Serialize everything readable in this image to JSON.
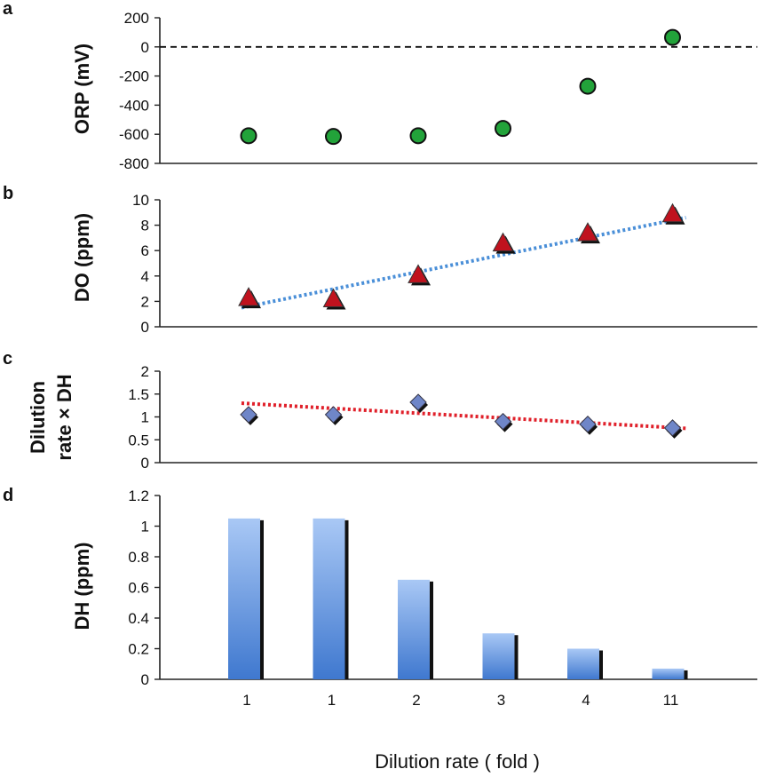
{
  "x_axis_title": "Dilution rate ( fold )",
  "x_categories": [
    "1",
    "1",
    "2",
    "3",
    "4",
    "11"
  ],
  "colors": {
    "orp_marker": "#22a33a",
    "do_marker": "#c0121e",
    "do_trend": "#4a8fd8",
    "ratio_marker": "#6f86c8",
    "ratio_trend": "#e0202a",
    "bar_light": "#a9c8f5",
    "bar_dark": "#3f78cf",
    "bar_shadow": "#111111"
  },
  "chart_data": [
    {
      "panel": "a",
      "type": "scatter",
      "ylabel": "ORP (mV)",
      "ylim": [
        -800,
        200
      ],
      "yticks": [
        "200",
        "0",
        "-200",
        "-400",
        "-600",
        "-800"
      ],
      "y_tick_values": [
        200,
        0,
        -200,
        -400,
        -600,
        -800
      ],
      "values": [
        -610,
        -615,
        -610,
        -560,
        -270,
        65
      ],
      "reference_line": 0,
      "marker": "circle"
    },
    {
      "panel": "b",
      "type": "scatter",
      "ylabel": "DO (ppm)",
      "ylim": [
        0,
        10
      ],
      "yticks": [
        "10",
        "8",
        "6",
        "4",
        "2",
        "0"
      ],
      "y_tick_values": [
        10,
        8,
        6,
        4,
        2,
        0
      ],
      "values": [
        2.3,
        2.2,
        4.1,
        6.6,
        7.4,
        8.9
      ],
      "trendline": [
        1.5,
        8.6
      ],
      "marker": "triangle"
    },
    {
      "panel": "c",
      "type": "scatter",
      "ylabel_lines": [
        "Dilution",
        "rate × DH"
      ],
      "ylim": [
        0,
        2
      ],
      "yticks": [
        "2",
        "1.5",
        "1",
        "0.5",
        "0"
      ],
      "y_tick_values": [
        2,
        1.5,
        1,
        0.5,
        0
      ],
      "values": [
        1.05,
        1.05,
        1.32,
        0.9,
        0.84,
        0.76
      ],
      "trendline": [
        1.3,
        0.75
      ],
      "marker": "diamond"
    },
    {
      "panel": "d",
      "type": "bar",
      "ylabel": "DH (ppm)",
      "ylim": [
        0,
        1.2
      ],
      "yticks": [
        "1.2",
        "1",
        "0.8",
        "0.6",
        "0.4",
        "0.2",
        "0"
      ],
      "y_tick_values": [
        1.2,
        1,
        0.8,
        0.6,
        0.4,
        0.2,
        0
      ],
      "values": [
        1.05,
        1.05,
        0.65,
        0.3,
        0.2,
        0.07
      ]
    }
  ]
}
